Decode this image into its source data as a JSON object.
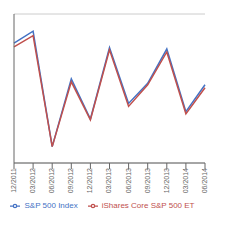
{
  "chart_data": {
    "type": "line",
    "categories": [
      "12/2011",
      "03/2012",
      "06/2012",
      "09/2012",
      "12/2012",
      "03/2013",
      "06/2013",
      "09/2013",
      "12/2013",
      "03/2014",
      "06/2014"
    ],
    "series": [
      {
        "name": "S&P 500 Index",
        "color": "#4472C4",
        "values": [
          10.6,
          12.2,
          -3.3,
          5.8,
          0.4,
          10.0,
          2.5,
          5.2,
          9.8,
          1.4,
          5.0
        ]
      },
      {
        "name": "iShares Core S&P 500 ET",
        "color": "#C0504D",
        "values": [
          10.1,
          11.6,
          -3.3,
          5.4,
          0.3,
          9.7,
          2.1,
          5.0,
          9.4,
          1.1,
          4.6
        ]
      }
    ],
    "ylim": [
      -5.5,
      14.5
    ],
    "yticks": [
      -5,
      0,
      5,
      10
    ],
    "grid": true,
    "legend": "bottom",
    "tick_labels": "x"
  }
}
